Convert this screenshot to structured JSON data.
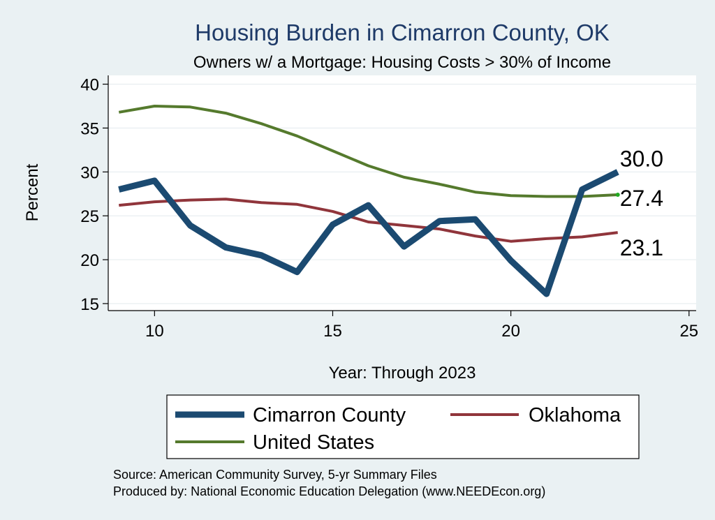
{
  "chart_data": {
    "type": "line",
    "title": "Housing Burden in Cimarron County, OK",
    "subtitle": "Owners w/ a Mortgage: Housing Costs > 30% of Income",
    "xlabel": "Year: Through 2023",
    "ylabel": "Percent",
    "xlim": [
      8.7,
      25.2
    ],
    "ylim": [
      14.2,
      41
    ],
    "xticks": [
      10,
      15,
      20,
      25
    ],
    "yticks": [
      15,
      20,
      25,
      30,
      35,
      40
    ],
    "grid": true,
    "series": [
      {
        "name": "Cimarron County",
        "color": "#1b4a71",
        "width": 9,
        "x": [
          9,
          10,
          11,
          12,
          13,
          14,
          15,
          16,
          17,
          18,
          19,
          20,
          21,
          22,
          23
        ],
        "values": [
          28.0,
          29.0,
          23.9,
          21.4,
          20.5,
          18.6,
          24.0,
          26.2,
          21.5,
          24.4,
          24.6,
          19.9,
          16.1,
          28.0,
          30.0
        ],
        "end_label": "30.0"
      },
      {
        "name": "Oklahoma",
        "color": "#90353b",
        "width": 4,
        "x": [
          9,
          10,
          11,
          12,
          13,
          14,
          15,
          16,
          17,
          18,
          19,
          20,
          21,
          22,
          23
        ],
        "values": [
          26.2,
          26.6,
          26.8,
          26.9,
          26.5,
          26.3,
          25.5,
          24.3,
          23.9,
          23.5,
          22.7,
          22.1,
          22.4,
          22.6,
          23.1
        ],
        "end_label": "23.1"
      },
      {
        "name": "United States",
        "color": "#557a2d",
        "width": 4,
        "x": [
          9,
          10,
          11,
          12,
          13,
          14,
          15,
          16,
          17,
          18,
          19,
          20,
          21,
          22,
          23
        ],
        "values": [
          36.8,
          37.5,
          37.4,
          36.7,
          35.5,
          34.1,
          32.4,
          30.7,
          29.4,
          28.6,
          27.7,
          27.3,
          27.2,
          27.2,
          27.4
        ],
        "end_label": "27.4"
      }
    ],
    "legend": [
      "Cimarron County",
      "Oklahoma",
      "United States"
    ],
    "notes": [
      "Source: American Community Survey, 5-yr Summary Files",
      "Produced by: National Economic Education Delegation (www.NEEDEcon.org)"
    ]
  }
}
